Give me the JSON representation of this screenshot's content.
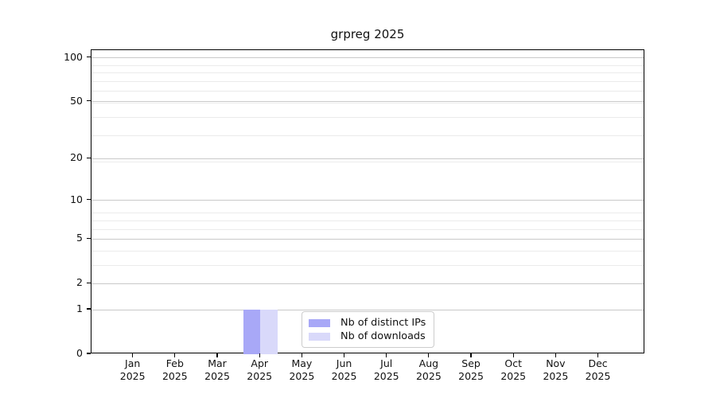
{
  "chart_data": {
    "type": "bar",
    "title": "grpreg 2025",
    "categories": [
      "Jan",
      "Feb",
      "Mar",
      "Apr",
      "May",
      "Jun",
      "Jul",
      "Aug",
      "Sep",
      "Oct",
      "Nov",
      "Dec"
    ],
    "x_year_label": "2025",
    "series": [
      {
        "name": "Nb of distinct IPs",
        "color": "#a8a8f7",
        "values": [
          0,
          0,
          0,
          1,
          0,
          0,
          0,
          0,
          0,
          0,
          0,
          0
        ]
      },
      {
        "name": "Nb of downloads",
        "color": "#d9d9fa",
        "values": [
          0,
          0,
          0,
          1,
          0,
          0,
          0,
          0,
          0,
          0,
          0,
          0
        ]
      }
    ],
    "y_ticks": [
      0,
      1,
      2,
      5,
      10,
      20,
      50,
      100
    ],
    "y_minor_ticks": [
      3,
      4,
      6,
      7,
      8,
      19,
      29,
      39,
      49,
      59,
      69,
      79,
      89
    ],
    "y_scale": "log1p",
    "ylim": [
      0,
      113
    ],
    "grid": "both",
    "legend_position": "lower center",
    "colors": {
      "major_grid": "#c9c9c9",
      "minor_grid": "#ebebeb",
      "spine": "#000000",
      "text": "#111111",
      "background": "#ffffff"
    }
  }
}
